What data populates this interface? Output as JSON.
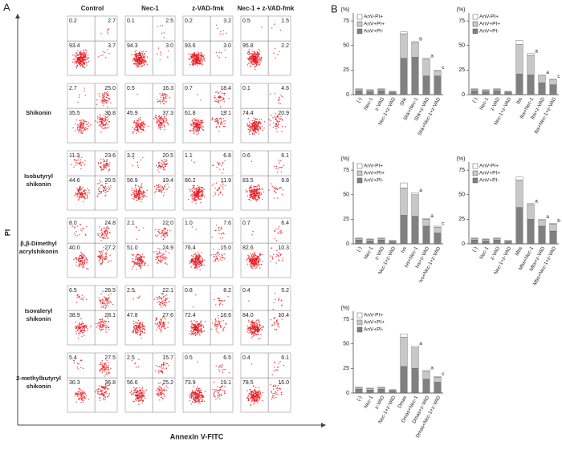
{
  "chart_data": [
    {
      "type": "quadrant",
      "panel_label": "A",
      "columns": [
        "Control",
        "Nec-1",
        "z-VAD-fmk",
        "Nec-1 + z-VAD-fmk"
      ],
      "rows": [
        null,
        [
          "Shikonin"
        ],
        [
          "Isobutyryl",
          "shikonin"
        ],
        [
          "β,β-Dimethyl",
          "acrylshikonin"
        ],
        [
          "Isovaleryl",
          "shikonin"
        ],
        [
          "2-methylbutyryl",
          "shikonin"
        ]
      ],
      "xlabel": "Annexin V-FITC",
      "ylabel": "PI",
      "values": [
        [
          [
            0.2,
            2.7,
            93.4,
            3.7
          ],
          [
            0.1,
            2.5,
            94.3,
            3.0
          ],
          [
            0.2,
            3.2,
            93.6,
            3.0
          ],
          [
            0.5,
            1.5,
            95.8,
            2.2
          ]
        ],
        [
          [
            2.7,
            25.0,
            35.5,
            36.8
          ],
          [
            0.5,
            16.3,
            45.9,
            37.3
          ],
          [
            0.7,
            18.4,
            61.8,
            19.1
          ],
          [
            0.1,
            4.6,
            74.4,
            20.9
          ]
        ],
        [
          [
            11.3,
            23.6,
            44.6,
            20.5
          ],
          [
            3.2,
            20.5,
            56.9,
            19.4
          ],
          [
            1.1,
            6.8,
            80.2,
            11.9
          ],
          [
            0.6,
            6.1,
            83.5,
            9.8
          ]
        ],
        [
          [
            8.0,
            24.8,
            40.0,
            27.2
          ],
          [
            2.1,
            22.0,
            51.0,
            24.9
          ],
          [
            1.0,
            7.6,
            76.4,
            15.0
          ],
          [
            0.7,
            6.4,
            82.6,
            10.3
          ]
        ],
        [
          [
            6.5,
            26.5,
            38.9,
            28.1
          ],
          [
            2.5,
            22.1,
            47.8,
            27.6
          ],
          [
            0.8,
            8.2,
            72.4,
            18.6
          ],
          [
            0.4,
            5.2,
            84.0,
            10.4
          ]
        ],
        [
          [
            5.4,
            27.5,
            30.3,
            36.8
          ],
          [
            2.5,
            15.7,
            56.6,
            25.2
          ],
          [
            0.5,
            6.5,
            73.9,
            19.1
          ],
          [
            0.4,
            6.1,
            78.5,
            15.0
          ]
        ]
      ],
      "value_labels": [
        [
          [
            "0.2",
            "2.7",
            "93.4",
            "3.7"
          ],
          [
            "0.1",
            "2.5",
            "94.3",
            "3.0"
          ],
          [
            "0.2",
            "3.2",
            "93.6",
            "3.0"
          ],
          [
            "0.5",
            "1.5",
            "95.8",
            "2.2"
          ]
        ],
        [
          [
            "2.7",
            "25.0",
            "35.5",
            "36.8"
          ],
          [
            "0.5",
            "16.3",
            "45.9",
            "37.3"
          ],
          [
            "0.7",
            "18.4",
            "61.8",
            "19.1"
          ],
          [
            "0.1",
            "4.6",
            "74.4",
            "20.9"
          ]
        ],
        [
          [
            "11.3",
            "23.6",
            "44.6",
            "20.5"
          ],
          [
            "3.2",
            "20.5",
            "56.9",
            "19.4"
          ],
          [
            "1.1",
            "6.8",
            "80.2",
            "11.9"
          ],
          [
            "0.6",
            "6.1",
            "83.5",
            "9.8"
          ]
        ],
        [
          [
            "8.0",
            "24.8",
            "40.0",
            "27.2"
          ],
          [
            "2.1",
            "22.0",
            "51.0",
            "24.9"
          ],
          [
            "1.0",
            "7.6",
            "76.4",
            "15.0"
          ],
          [
            "0.7",
            "6.4",
            "82.6",
            "10.3"
          ]
        ],
        [
          [
            "6.5",
            "26.5",
            "38.9",
            "28.1"
          ],
          [
            "2.5",
            "22.1",
            "47.8",
            "27.6"
          ],
          [
            "0.8",
            "8.2",
            "72.4",
            "18.6"
          ],
          [
            "0.4",
            "5.2",
            "84.0",
            "10.4"
          ]
        ],
        [
          [
            "5.4",
            "27.5",
            "30.3",
            "36.8"
          ],
          [
            "2.5",
            "15.7",
            "56.6",
            "25.2"
          ],
          [
            "0.5",
            "6.5",
            "73.9",
            "19.1"
          ],
          [
            "0.4",
            "6.1",
            "78.5",
            "15.0"
          ]
        ]
      ]
    },
    {
      "type": "stacked_bar",
      "panel_label": "B",
      "ylabel": "(%)",
      "ylim": [
        0,
        80
      ],
      "yticks": [
        0,
        25,
        50,
        75
      ],
      "categories": [
        "(-)",
        "Nec-1",
        "z-VAD",
        "Nec-1+z-VAD",
        "Shk",
        "Shk+Nec-1",
        "Shk+z-VAD",
        "Shk+Nec-1+z-VAD"
      ],
      "series": [
        {
          "name": "AnV-PI+",
          "color": "#ffffff",
          "values": [
            0.5,
            0.5,
            0.5,
            0.5,
            2,
            1,
            1,
            1
          ]
        },
        {
          "name": "AnV+PI+",
          "color": "#c8c8c8",
          "values": [
            1.5,
            1.5,
            1.5,
            1,
            25,
            15,
            17,
            5
          ]
        },
        {
          "name": "AnV+PI-",
          "color": "#808080",
          "values": [
            4,
            3,
            4,
            2,
            37,
            38,
            19,
            19
          ]
        }
      ],
      "significance": [
        null,
        null,
        null,
        null,
        null,
        "b",
        "a",
        "c"
      ]
    },
    {
      "type": "stacked_bar",
      "ylabel": "(%)",
      "ylim": [
        0,
        80
      ],
      "yticks": [
        0,
        25,
        50,
        75
      ],
      "categories": [
        "(-)",
        "Nec-1",
        "z-VAD",
        "Nec-1+z-VAD",
        "Ibs",
        "Ibs+Nec-1",
        "Ibs+z-VAD",
        "Ibs+Nec-1+z-VAD"
      ],
      "series": [
        {
          "name": "AnV-PI+",
          "color": "#ffffff",
          "values": [
            0.5,
            0.5,
            0.5,
            0.5,
            4,
            2,
            1,
            1
          ]
        },
        {
          "name": "AnV+PI+",
          "color": "#c8c8c8",
          "values": [
            1.5,
            1.5,
            1.5,
            1,
            30,
            20,
            7,
            5
          ]
        },
        {
          "name": "AnV+PI-",
          "color": "#808080",
          "values": [
            4,
            3,
            4,
            2,
            21,
            20,
            12,
            10
          ]
        }
      ],
      "significance": [
        null,
        null,
        null,
        null,
        null,
        "a",
        "a",
        "c"
      ]
    },
    {
      "type": "stacked_bar",
      "ylabel": "(%)",
      "ylim": [
        0,
        80
      ],
      "yticks": [
        0,
        25,
        50,
        75
      ],
      "categories": [
        "(-)",
        "Nec-1",
        "z-VAD",
        "Nec-1+z-VAD",
        "Ivs",
        "Ivs+Nec-1",
        "Ivs+z-VAD",
        "Ivs+Nec-1+z-VAD"
      ],
      "series": [
        {
          "name": "AnV-PI+",
          "color": "#ffffff",
          "values": [
            0.5,
            0.5,
            0.5,
            0.5,
            5,
            2,
            1,
            1
          ]
        },
        {
          "name": "AnV+PI+",
          "color": "#c8c8c8",
          "values": [
            1.5,
            1.5,
            1.5,
            1,
            28,
            22,
            7,
            6
          ]
        },
        {
          "name": "AnV+PI-",
          "color": "#808080",
          "values": [
            4,
            3,
            4,
            2,
            29,
            28,
            18,
            11
          ]
        }
      ],
      "significance": [
        null,
        null,
        null,
        null,
        null,
        "a",
        "a",
        "c"
      ]
    },
    {
      "type": "stacked_bar",
      "ylabel": "(%)",
      "ylim": [
        0,
        80
      ],
      "yticks": [
        0,
        25,
        50,
        75
      ],
      "categories": [
        "(-)",
        "Nec-1",
        "z-VAD",
        "Nec-1+z-VAD",
        "Mbs",
        "Mbs+Nec-1",
        "Mbs+z-VAD",
        "Mbs+Nec-1+z-VAD"
      ],
      "series": [
        {
          "name": "AnV-PI+",
          "color": "#ffffff",
          "values": [
            0.5,
            0.5,
            0.5,
            0.5,
            3,
            1,
            1,
            1
          ]
        },
        {
          "name": "AnV+PI+",
          "color": "#c8c8c8",
          "values": [
            1.5,
            1.5,
            1.5,
            1,
            28,
            15,
            6,
            7
          ]
        },
        {
          "name": "AnV+PI-",
          "color": "#808080",
          "values": [
            4,
            3,
            4,
            2,
            37,
            25,
            18,
            13
          ]
        }
      ],
      "significance": [
        null,
        null,
        null,
        null,
        null,
        "a",
        "a",
        "b"
      ]
    },
    {
      "type": "stacked_bar",
      "ylabel": "(%)",
      "ylim": [
        0,
        80
      ],
      "yticks": [
        0,
        25,
        50,
        75
      ],
      "categories": [
        "(-)",
        "Nec-1",
        "z-VAD",
        "Nec-1+z-VAD",
        "Dmas",
        "Dmas+Nec-1",
        "Dmas+z-VAD",
        "Dmas+Nec-1+z-VAD"
      ],
      "series": [
        {
          "name": "AnV-PI+",
          "color": "#ffffff",
          "values": [
            0.5,
            0.5,
            0.5,
            0.5,
            3,
            2,
            1,
            1
          ]
        },
        {
          "name": "AnV+PI+",
          "color": "#c8c8c8",
          "values": [
            1.5,
            1.5,
            1.5,
            1,
            30,
            21,
            8,
            5
          ]
        },
        {
          "name": "AnV+PI-",
          "color": "#808080",
          "values": [
            4,
            3,
            4,
            2,
            27,
            25,
            14,
            11
          ]
        }
      ],
      "significance": [
        null,
        null,
        null,
        null,
        null,
        "a",
        "a",
        "c"
      ]
    }
  ]
}
